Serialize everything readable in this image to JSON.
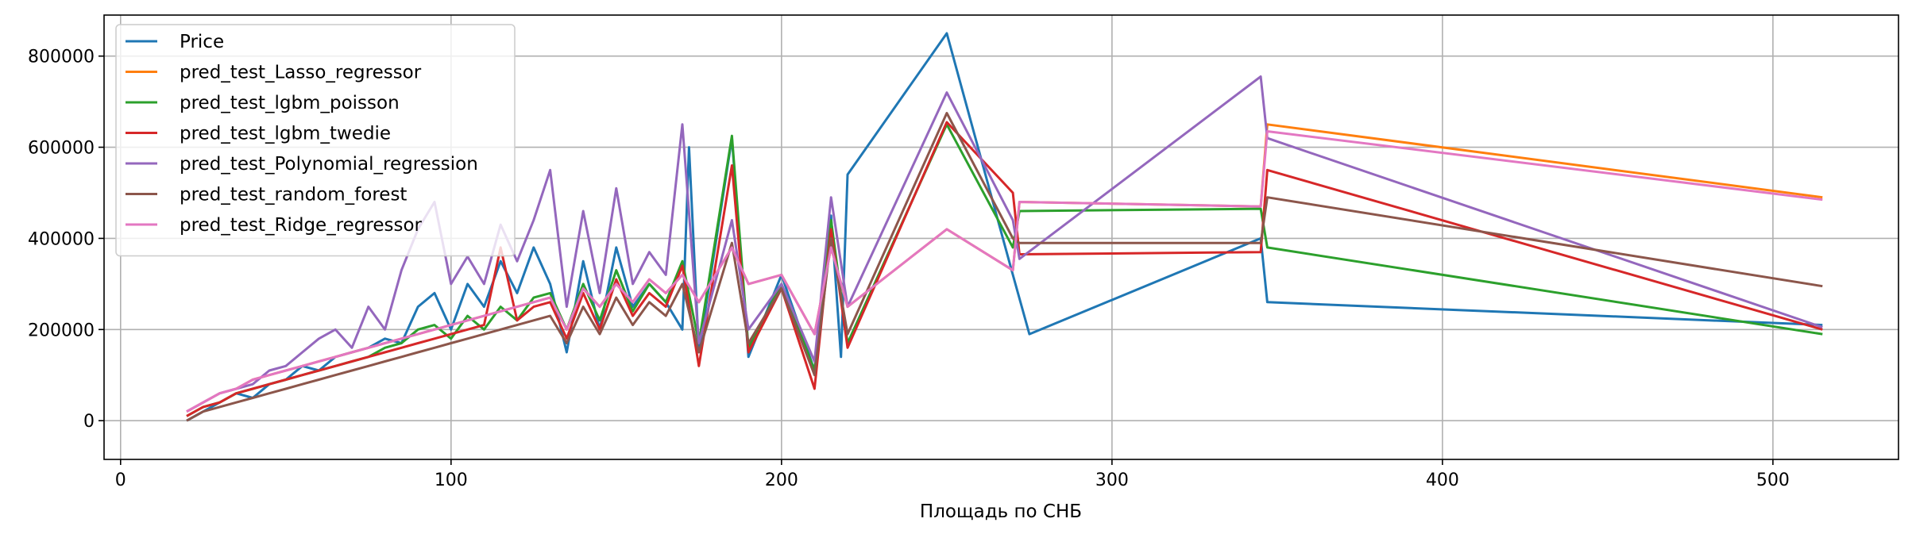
{
  "chart_data": {
    "type": "line",
    "xlabel": "Площадь по СНБ",
    "ylabel": "",
    "title": "",
    "xlim": [
      -5,
      538
    ],
    "ylim": [
      -85000,
      890000
    ],
    "xticks": [
      0,
      100,
      200,
      300,
      400,
      500
    ],
    "xtick_labels": [
      "0",
      "100",
      "200",
      "300",
      "400",
      "500"
    ],
    "yticks": [
      0,
      200000,
      400000,
      600000,
      800000
    ],
    "ytick_labels": [
      "0",
      "200000",
      "400000",
      "600000",
      "800000"
    ],
    "grid": true,
    "legend_position": "top-left",
    "series": [
      {
        "name": "Price",
        "color": "#1f77b4",
        "x": [
          20,
          25,
          30,
          35,
          40,
          45,
          50,
          55,
          60,
          65,
          70,
          75,
          80,
          85,
          90,
          95,
          100,
          105,
          110,
          115,
          120,
          125,
          130,
          135,
          140,
          145,
          150,
          155,
          160,
          165,
          170,
          172,
          175,
          185,
          190,
          200,
          210,
          215,
          218,
          220,
          250,
          270,
          275,
          345,
          347,
          515
        ],
        "y": [
          0,
          20000,
          40000,
          60000,
          50000,
          80000,
          90000,
          120000,
          110000,
          140000,
          150000,
          160000,
          180000,
          170000,
          250000,
          280000,
          200000,
          300000,
          250000,
          350000,
          280000,
          380000,
          300000,
          150000,
          350000,
          200000,
          380000,
          250000,
          300000,
          260000,
          200000,
          600000,
          150000,
          620000,
          140000,
          320000,
          110000,
          450000,
          140000,
          540000,
          850000,
          320000,
          190000,
          400000,
          260000,
          210000
        ]
      },
      {
        "name": "pred_test_Lasso_regressor",
        "color": "#ff7f0e",
        "x": [
          20,
          25,
          30,
          35,
          40,
          45,
          50,
          55,
          60,
          65,
          70,
          75,
          80,
          85,
          90,
          95,
          100,
          105,
          110,
          115,
          120,
          125,
          130,
          135,
          140,
          145,
          150,
          155,
          160,
          165,
          170,
          175,
          185,
          190,
          200,
          210,
          215,
          220,
          250,
          270,
          272,
          345,
          347,
          515
        ],
        "y": [
          20000,
          40000,
          60000,
          70000,
          90000,
          100000,
          110000,
          120000,
          130000,
          140000,
          150000,
          160000,
          170000,
          180000,
          190000,
          200000,
          210000,
          220000,
          230000,
          240000,
          250000,
          260000,
          270000,
          200000,
          290000,
          250000,
          300000,
          260000,
          310000,
          280000,
          320000,
          260000,
          380000,
          300000,
          320000,
          190000,
          380000,
          250000,
          420000,
          330000,
          480000,
          470000,
          650000,
          490000
        ]
      },
      {
        "name": "pred_test_lgbm_poisson",
        "color": "#2ca02c",
        "x": [
          20,
          25,
          30,
          35,
          40,
          45,
          50,
          55,
          60,
          65,
          70,
          75,
          80,
          85,
          90,
          95,
          100,
          105,
          110,
          115,
          120,
          125,
          130,
          135,
          140,
          145,
          150,
          155,
          160,
          165,
          170,
          175,
          185,
          190,
          200,
          210,
          215,
          220,
          250,
          270,
          272,
          345,
          347,
          515
        ],
        "y": [
          10000,
          30000,
          40000,
          60000,
          70000,
          80000,
          90000,
          100000,
          110000,
          120000,
          130000,
          140000,
          160000,
          170000,
          200000,
          210000,
          180000,
          230000,
          200000,
          250000,
          220000,
          270000,
          280000,
          200000,
          300000,
          220000,
          330000,
          240000,
          300000,
          260000,
          350000,
          170000,
          625000,
          160000,
          300000,
          110000,
          440000,
          170000,
          650000,
          380000,
          460000,
          465000,
          380000,
          190000
        ]
      },
      {
        "name": "pred_test_lgbm_twedie",
        "color": "#d62728",
        "x": [
          20,
          25,
          30,
          35,
          40,
          45,
          50,
          55,
          60,
          65,
          70,
          75,
          80,
          85,
          90,
          95,
          100,
          105,
          110,
          115,
          120,
          125,
          130,
          135,
          140,
          145,
          150,
          155,
          160,
          165,
          170,
          175,
          185,
          190,
          200,
          210,
          215,
          220,
          250,
          270,
          272,
          345,
          347,
          515
        ],
        "y": [
          10000,
          30000,
          40000,
          60000,
          70000,
          80000,
          90000,
          100000,
          110000,
          120000,
          130000,
          140000,
          150000,
          160000,
          170000,
          180000,
          190000,
          200000,
          210000,
          380000,
          220000,
          250000,
          260000,
          180000,
          280000,
          200000,
          310000,
          230000,
          280000,
          250000,
          340000,
          120000,
          560000,
          150000,
          290000,
          70000,
          420000,
          160000,
          655000,
          500000,
          365000,
          370000,
          550000,
          200000
        ]
      },
      {
        "name": "pred_test_Polynomial_regression",
        "color": "#9467bd",
        "x": [
          20,
          25,
          30,
          35,
          40,
          45,
          50,
          55,
          60,
          65,
          70,
          75,
          80,
          85,
          90,
          95,
          100,
          105,
          110,
          115,
          120,
          125,
          130,
          135,
          140,
          145,
          150,
          155,
          160,
          165,
          170,
          175,
          185,
          190,
          200,
          210,
          215,
          220,
          250,
          270,
          272,
          345,
          347,
          515
        ],
        "y": [
          20000,
          40000,
          60000,
          70000,
          80000,
          110000,
          120000,
          150000,
          180000,
          200000,
          160000,
          250000,
          200000,
          330000,
          420000,
          480000,
          300000,
          360000,
          300000,
          430000,
          350000,
          440000,
          550000,
          250000,
          460000,
          280000,
          510000,
          300000,
          370000,
          320000,
          650000,
          170000,
          440000,
          200000,
          300000,
          130000,
          490000,
          250000,
          720000,
          440000,
          355000,
          755000,
          620000,
          205000
        ]
      },
      {
        "name": "pred_test_random_forest",
        "color": "#8c564b",
        "x": [
          20,
          25,
          30,
          35,
          40,
          45,
          50,
          55,
          60,
          65,
          70,
          75,
          80,
          85,
          90,
          95,
          100,
          105,
          110,
          115,
          120,
          125,
          130,
          135,
          140,
          145,
          150,
          155,
          160,
          165,
          170,
          175,
          185,
          190,
          200,
          210,
          215,
          220,
          250,
          270,
          272,
          345,
          347,
          515
        ],
        "y": [
          0,
          20000,
          30000,
          40000,
          50000,
          60000,
          70000,
          80000,
          90000,
          100000,
          110000,
          120000,
          130000,
          140000,
          150000,
          160000,
          170000,
          180000,
          190000,
          200000,
          210000,
          220000,
          230000,
          170000,
          250000,
          190000,
          270000,
          210000,
          260000,
          230000,
          300000,
          150000,
          390000,
          170000,
          290000,
          100000,
          400000,
          190000,
          675000,
          400000,
          390000,
          390000,
          490000,
          295000
        ]
      },
      {
        "name": "pred_test_Ridge_regressor",
        "color": "#e377c2",
        "x": [
          20,
          25,
          30,
          35,
          40,
          45,
          50,
          55,
          60,
          65,
          70,
          75,
          80,
          85,
          90,
          95,
          100,
          105,
          110,
          115,
          120,
          125,
          130,
          135,
          140,
          145,
          150,
          155,
          160,
          165,
          170,
          175,
          185,
          190,
          200,
          210,
          215,
          220,
          250,
          270,
          272,
          345,
          347,
          515
        ],
        "y": [
          20000,
          40000,
          60000,
          70000,
          90000,
          100000,
          110000,
          120000,
          130000,
          140000,
          150000,
          160000,
          170000,
          180000,
          190000,
          200000,
          210000,
          220000,
          230000,
          240000,
          250000,
          260000,
          270000,
          200000,
          290000,
          250000,
          300000,
          260000,
          310000,
          280000,
          320000,
          260000,
          380000,
          300000,
          320000,
          190000,
          380000,
          250000,
          420000,
          330000,
          480000,
          470000,
          635000,
          485000
        ]
      }
    ]
  }
}
